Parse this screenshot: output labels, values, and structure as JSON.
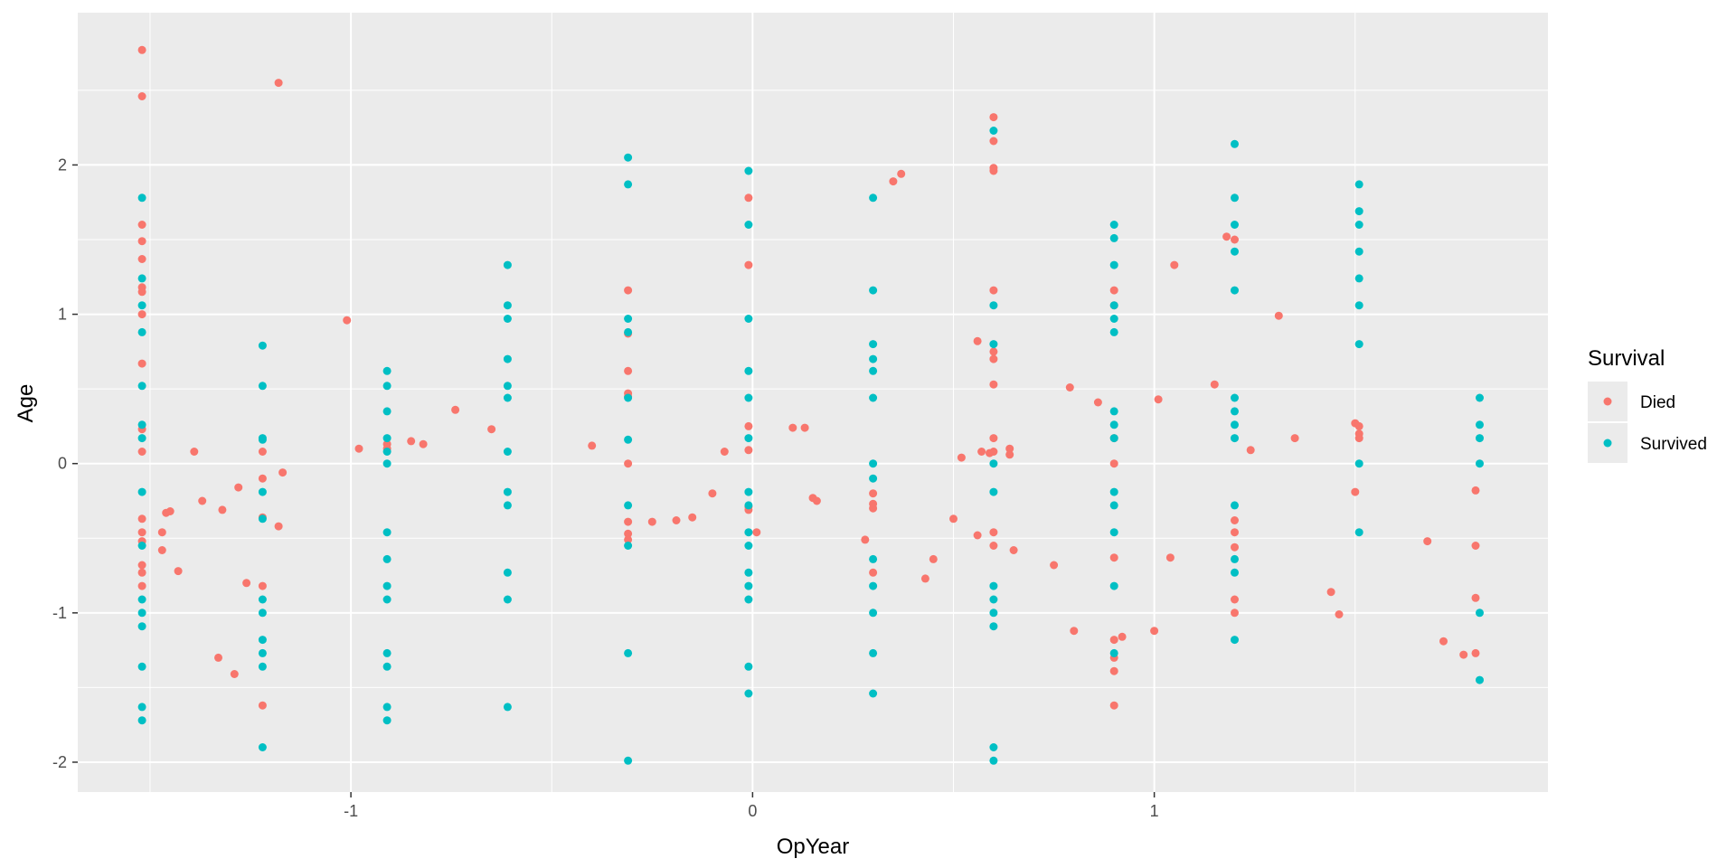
{
  "chart_data": {
    "type": "scatter",
    "title": "",
    "xlabel": "OpYear",
    "ylabel": "Age",
    "xlim": [
      -1.68,
      1.98
    ],
    "ylim": [
      -2.2,
      3.02
    ],
    "x_ticks": [
      -1,
      0,
      1
    ],
    "x_tick_labels": [
      "-1",
      "0",
      "1"
    ],
    "y_ticks": [
      -2,
      -1,
      0,
      1,
      2
    ],
    "y_tick_labels": [
      "-2",
      "-1",
      "0",
      "1",
      "2"
    ],
    "grid": true,
    "legend": {
      "title": "Survival",
      "position": "right"
    },
    "colors": {
      "panel": "#ebebeb",
      "grid": "#ffffff",
      "Died": "#f8766d",
      "Survived": "#00bfc4"
    },
    "series": [
      {
        "name": "Died",
        "points": [
          [
            -1.52,
            2.77
          ],
          [
            -1.52,
            2.46
          ],
          [
            -1.52,
            1.6
          ],
          [
            -1.52,
            1.49
          ],
          [
            -1.52,
            1.37
          ],
          [
            -1.52,
            1.18
          ],
          [
            -1.52,
            1.15
          ],
          [
            -1.52,
            1.0
          ],
          [
            -1.52,
            0.67
          ],
          [
            -1.52,
            0.23
          ],
          [
            -1.52,
            0.08
          ],
          [
            -1.52,
            -0.37
          ],
          [
            -1.52,
            -0.46
          ],
          [
            -1.52,
            -0.52
          ],
          [
            -1.52,
            -0.68
          ],
          [
            -1.52,
            -0.73
          ],
          [
            -1.52,
            -0.82
          ],
          [
            -1.47,
            -0.46
          ],
          [
            -1.47,
            -0.58
          ],
          [
            -1.46,
            -0.33
          ],
          [
            -1.45,
            -0.32
          ],
          [
            -1.43,
            -0.72
          ],
          [
            -1.39,
            0.08
          ],
          [
            -1.37,
            -0.25
          ],
          [
            -1.33,
            -1.3
          ],
          [
            -1.32,
            -0.31
          ],
          [
            -1.29,
            -1.41
          ],
          [
            -1.28,
            -0.16
          ],
          [
            -1.26,
            -0.8
          ],
          [
            -1.22,
            0.08
          ],
          [
            -1.22,
            -0.1
          ],
          [
            -1.22,
            -0.36
          ],
          [
            -1.22,
            -0.82
          ],
          [
            -1.22,
            -1.62
          ],
          [
            -1.18,
            2.55
          ],
          [
            -1.18,
            -0.42
          ],
          [
            -1.17,
            -0.06
          ],
          [
            -1.01,
            0.96
          ],
          [
            -0.98,
            0.1
          ],
          [
            -0.91,
            0.1
          ],
          [
            -0.91,
            0.13
          ],
          [
            -0.85,
            0.15
          ],
          [
            -0.82,
            0.13
          ],
          [
            -0.74,
            0.36
          ],
          [
            -0.65,
            0.23
          ],
          [
            -0.4,
            0.12
          ],
          [
            -0.31,
            1.16
          ],
          [
            -0.31,
            0.87
          ],
          [
            -0.31,
            0.62
          ],
          [
            -0.31,
            0.47
          ],
          [
            -0.31,
            0.45
          ],
          [
            -0.31,
            0.0
          ],
          [
            -0.31,
            -0.39
          ],
          [
            -0.31,
            -0.47
          ],
          [
            -0.31,
            -0.51
          ],
          [
            -0.25,
            -0.39
          ],
          [
            -0.19,
            -0.38
          ],
          [
            -0.15,
            -0.36
          ],
          [
            -0.1,
            -0.2
          ],
          [
            -0.07,
            0.08
          ],
          [
            -0.01,
            1.78
          ],
          [
            -0.01,
            1.33
          ],
          [
            -0.01,
            0.25
          ],
          [
            -0.01,
            0.09
          ],
          [
            -0.01,
            -0.29
          ],
          [
            -0.01,
            -0.31
          ],
          [
            0.01,
            -0.46
          ],
          [
            0.1,
            0.24
          ],
          [
            0.13,
            0.24
          ],
          [
            0.15,
            -0.23
          ],
          [
            0.16,
            -0.25
          ],
          [
            0.28,
            -0.51
          ],
          [
            0.3,
            -0.2
          ],
          [
            0.3,
            -0.27
          ],
          [
            0.3,
            -0.3
          ],
          [
            0.3,
            -0.73
          ],
          [
            0.35,
            1.89
          ],
          [
            0.37,
            1.94
          ],
          [
            0.43,
            -0.77
          ],
          [
            0.45,
            -0.64
          ],
          [
            0.5,
            -0.37
          ],
          [
            0.52,
            0.04
          ],
          [
            0.56,
            0.82
          ],
          [
            0.56,
            -0.48
          ],
          [
            0.57,
            0.08
          ],
          [
            0.59,
            0.07
          ],
          [
            0.6,
            2.32
          ],
          [
            0.6,
            2.16
          ],
          [
            0.6,
            1.98
          ],
          [
            0.6,
            1.96
          ],
          [
            0.6,
            1.16
          ],
          [
            0.6,
            0.75
          ],
          [
            0.6,
            0.7
          ],
          [
            0.6,
            0.53
          ],
          [
            0.6,
            0.17
          ],
          [
            0.6,
            0.08
          ],
          [
            0.6,
            -0.46
          ],
          [
            0.6,
            -0.55
          ],
          [
            0.64,
            0.1
          ],
          [
            0.64,
            0.06
          ],
          [
            0.65,
            -0.58
          ],
          [
            0.75,
            -0.68
          ],
          [
            0.79,
            0.51
          ],
          [
            0.8,
            -1.12
          ],
          [
            0.86,
            0.41
          ],
          [
            0.9,
            1.16
          ],
          [
            0.9,
            1.06
          ],
          [
            0.9,
            0.17
          ],
          [
            0.9,
            0.0
          ],
          [
            0.9,
            -0.63
          ],
          [
            0.9,
            -1.18
          ],
          [
            0.9,
            -1.3
          ],
          [
            0.9,
            -1.39
          ],
          [
            0.9,
            -1.62
          ],
          [
            0.92,
            -1.16
          ],
          [
            1.0,
            -1.12
          ],
          [
            1.01,
            0.43
          ],
          [
            1.04,
            -0.63
          ],
          [
            1.05,
            1.33
          ],
          [
            1.15,
            0.53
          ],
          [
            1.18,
            1.52
          ],
          [
            1.2,
            1.5
          ],
          [
            1.2,
            -0.38
          ],
          [
            1.2,
            -0.46
          ],
          [
            1.2,
            -0.56
          ],
          [
            1.2,
            -0.91
          ],
          [
            1.2,
            -1.0
          ],
          [
            1.24,
            0.09
          ],
          [
            1.31,
            0.99
          ],
          [
            1.35,
            0.17
          ],
          [
            1.44,
            -0.86
          ],
          [
            1.46,
            -1.01
          ],
          [
            1.5,
            0.27
          ],
          [
            1.5,
            -0.19
          ],
          [
            1.51,
            0.25
          ],
          [
            1.51,
            0.2
          ],
          [
            1.51,
            0.17
          ],
          [
            1.68,
            -0.52
          ],
          [
            1.72,
            -1.19
          ],
          [
            1.77,
            -1.28
          ],
          [
            1.8,
            -0.18
          ],
          [
            1.8,
            -0.55
          ],
          [
            1.8,
            -0.9
          ],
          [
            1.8,
            -1.27
          ]
        ]
      },
      {
        "name": "Survived",
        "points": [
          [
            -1.52,
            1.78
          ],
          [
            -1.52,
            1.24
          ],
          [
            -1.52,
            1.06
          ],
          [
            -1.52,
            0.88
          ],
          [
            -1.52,
            0.52
          ],
          [
            -1.52,
            0.26
          ],
          [
            -1.52,
            0.17
          ],
          [
            -1.52,
            -0.19
          ],
          [
            -1.52,
            -0.55
          ],
          [
            -1.52,
            -0.91
          ],
          [
            -1.52,
            -1.0
          ],
          [
            -1.52,
            -1.09
          ],
          [
            -1.52,
            -1.36
          ],
          [
            -1.52,
            -1.63
          ],
          [
            -1.52,
            -1.72
          ],
          [
            -1.22,
            0.79
          ],
          [
            -1.22,
            0.52
          ],
          [
            -1.22,
            0.17
          ],
          [
            -1.22,
            0.16
          ],
          [
            -1.22,
            -0.19
          ],
          [
            -1.22,
            -0.37
          ],
          [
            -1.22,
            -0.91
          ],
          [
            -1.22,
            -1.0
          ],
          [
            -1.22,
            -1.18
          ],
          [
            -1.22,
            -1.27
          ],
          [
            -1.22,
            -1.36
          ],
          [
            -1.22,
            -1.9
          ],
          [
            -0.91,
            0.62
          ],
          [
            -0.91,
            0.52
          ],
          [
            -0.91,
            0.35
          ],
          [
            -0.91,
            0.17
          ],
          [
            -0.91,
            0.08
          ],
          [
            -0.91,
            0.0
          ],
          [
            -0.91,
            -0.46
          ],
          [
            -0.91,
            -0.64
          ],
          [
            -0.91,
            -0.82
          ],
          [
            -0.91,
            -0.91
          ],
          [
            -0.91,
            -1.27
          ],
          [
            -0.91,
            -1.36
          ],
          [
            -0.91,
            -1.63
          ],
          [
            -0.91,
            -1.72
          ],
          [
            -0.61,
            1.33
          ],
          [
            -0.61,
            1.06
          ],
          [
            -0.61,
            0.97
          ],
          [
            -0.61,
            0.7
          ],
          [
            -0.61,
            0.52
          ],
          [
            -0.61,
            0.44
          ],
          [
            -0.61,
            0.08
          ],
          [
            -0.61,
            -0.19
          ],
          [
            -0.61,
            -0.28
          ],
          [
            -0.61,
            -0.73
          ],
          [
            -0.61,
            -0.91
          ],
          [
            -0.61,
            -1.63
          ],
          [
            -0.31,
            2.05
          ],
          [
            -0.31,
            1.87
          ],
          [
            -0.31,
            0.97
          ],
          [
            -0.31,
            0.88
          ],
          [
            -0.31,
            0.44
          ],
          [
            -0.31,
            0.16
          ],
          [
            -0.31,
            -0.28
          ],
          [
            -0.31,
            -0.55
          ],
          [
            -0.31,
            -1.27
          ],
          [
            -0.31,
            -1.99
          ],
          [
            -0.01,
            1.96
          ],
          [
            -0.01,
            1.6
          ],
          [
            -0.01,
            0.97
          ],
          [
            -0.01,
            0.62
          ],
          [
            -0.01,
            0.44
          ],
          [
            -0.01,
            0.17
          ],
          [
            -0.01,
            -0.19
          ],
          [
            -0.01,
            -0.28
          ],
          [
            -0.01,
            -0.46
          ],
          [
            -0.01,
            -0.55
          ],
          [
            -0.01,
            -0.73
          ],
          [
            -0.01,
            -0.82
          ],
          [
            -0.01,
            -0.91
          ],
          [
            -0.01,
            -1.36
          ],
          [
            -0.01,
            -1.54
          ],
          [
            0.3,
            1.78
          ],
          [
            0.3,
            1.16
          ],
          [
            0.3,
            0.8
          ],
          [
            0.3,
            0.7
          ],
          [
            0.3,
            0.62
          ],
          [
            0.3,
            0.44
          ],
          [
            0.3,
            0.0
          ],
          [
            0.3,
            -0.1
          ],
          [
            0.3,
            -0.64
          ],
          [
            0.3,
            -0.82
          ],
          [
            0.3,
            -1.0
          ],
          [
            0.3,
            -1.27
          ],
          [
            0.3,
            -1.54
          ],
          [
            0.6,
            2.23
          ],
          [
            0.6,
            1.06
          ],
          [
            0.6,
            0.8
          ],
          [
            0.6,
            0.0
          ],
          [
            0.6,
            -0.19
          ],
          [
            0.6,
            -0.82
          ],
          [
            0.6,
            -0.91
          ],
          [
            0.6,
            -1.0
          ],
          [
            0.6,
            -1.09
          ],
          [
            0.6,
            -1.9
          ],
          [
            0.6,
            -1.99
          ],
          [
            0.9,
            1.6
          ],
          [
            0.9,
            1.51
          ],
          [
            0.9,
            1.33
          ],
          [
            0.9,
            1.06
          ],
          [
            0.9,
            0.97
          ],
          [
            0.9,
            0.88
          ],
          [
            0.9,
            0.35
          ],
          [
            0.9,
            0.26
          ],
          [
            0.9,
            0.17
          ],
          [
            0.9,
            -0.19
          ],
          [
            0.9,
            -0.28
          ],
          [
            0.9,
            -0.46
          ],
          [
            0.9,
            -0.82
          ],
          [
            0.9,
            -1.27
          ],
          [
            1.2,
            2.14
          ],
          [
            1.2,
            1.78
          ],
          [
            1.2,
            1.6
          ],
          [
            1.2,
            1.42
          ],
          [
            1.2,
            1.16
          ],
          [
            1.2,
            0.44
          ],
          [
            1.2,
            0.35
          ],
          [
            1.2,
            0.26
          ],
          [
            1.2,
            0.17
          ],
          [
            1.2,
            -0.28
          ],
          [
            1.2,
            -0.64
          ],
          [
            1.2,
            -0.73
          ],
          [
            1.2,
            -1.18
          ],
          [
            1.51,
            1.87
          ],
          [
            1.51,
            1.69
          ],
          [
            1.51,
            1.6
          ],
          [
            1.51,
            1.42
          ],
          [
            1.51,
            1.24
          ],
          [
            1.51,
            1.06
          ],
          [
            1.51,
            0.8
          ],
          [
            1.51,
            0.0
          ],
          [
            1.51,
            -0.46
          ],
          [
            1.81,
            0.44
          ],
          [
            1.81,
            0.26
          ],
          [
            1.81,
            0.17
          ],
          [
            1.81,
            0.0
          ],
          [
            1.81,
            -1.0
          ],
          [
            1.81,
            -1.45
          ]
        ]
      }
    ]
  }
}
